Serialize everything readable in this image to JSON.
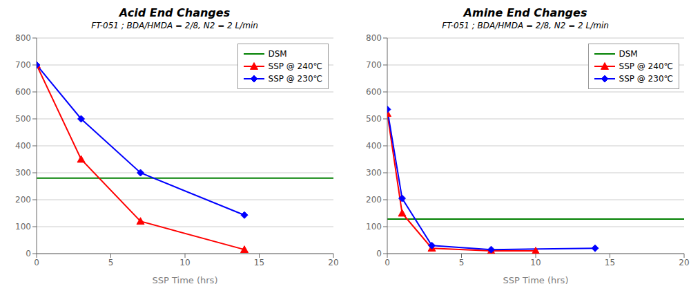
{
  "chart_data": [
    {
      "type": "line",
      "title": "Acid End Changes",
      "subtitle": "FT-051 ; BDA/HMDA = 2/8, N2 = 2 L/min",
      "xlabel": "SSP Time (hrs)",
      "xlim": [
        0,
        20
      ],
      "xticks": [
        0,
        5,
        10,
        15,
        20
      ],
      "ylim": [
        0,
        800
      ],
      "yticks": [
        0,
        100,
        200,
        300,
        400,
        500,
        600,
        700,
        800
      ],
      "grid": true,
      "legend": "upper right",
      "series": [
        {
          "name": "DSM",
          "type": "hline",
          "color": "#008000",
          "values": [
            280
          ]
        },
        {
          "name": "SSP @ 240℃",
          "type": "line",
          "color": "#FF0000",
          "marker": "triangle",
          "x": [
            0,
            3,
            7,
            14
          ],
          "values": [
            700,
            350,
            120,
            15
          ]
        },
        {
          "name": "SSP @ 230℃",
          "type": "line",
          "color": "#0000FF",
          "marker": "diamond",
          "x": [
            0,
            3,
            7,
            14
          ],
          "values": [
            700,
            500,
            300,
            143
          ]
        }
      ]
    },
    {
      "type": "line",
      "title": "Amine End Changes",
      "subtitle": "FT-051 ; BDA/HMDA = 2/8, N2 = 2 L/min",
      "xlabel": "SSP Time (hrs)",
      "xlim": [
        0,
        20
      ],
      "xticks": [
        0,
        5,
        10,
        15,
        20
      ],
      "ylim": [
        0,
        800
      ],
      "yticks": [
        0,
        100,
        200,
        300,
        400,
        500,
        600,
        700,
        800
      ],
      "grid": true,
      "legend": "upper right",
      "series": [
        {
          "name": "DSM",
          "type": "hline",
          "color": "#008000",
          "values": [
            128
          ]
        },
        {
          "name": "SSP @ 240℃",
          "type": "line",
          "color": "#FF0000",
          "marker": "triangle",
          "x": [
            0,
            1,
            3,
            7,
            10
          ],
          "values": [
            520,
            150,
            20,
            10,
            10
          ]
        },
        {
          "name": "SSP @ 230℃",
          "type": "line",
          "color": "#0000FF",
          "marker": "diamond",
          "x": [
            0,
            1,
            3,
            7,
            14
          ],
          "values": [
            535,
            205,
            30,
            15,
            20
          ]
        }
      ]
    }
  ]
}
